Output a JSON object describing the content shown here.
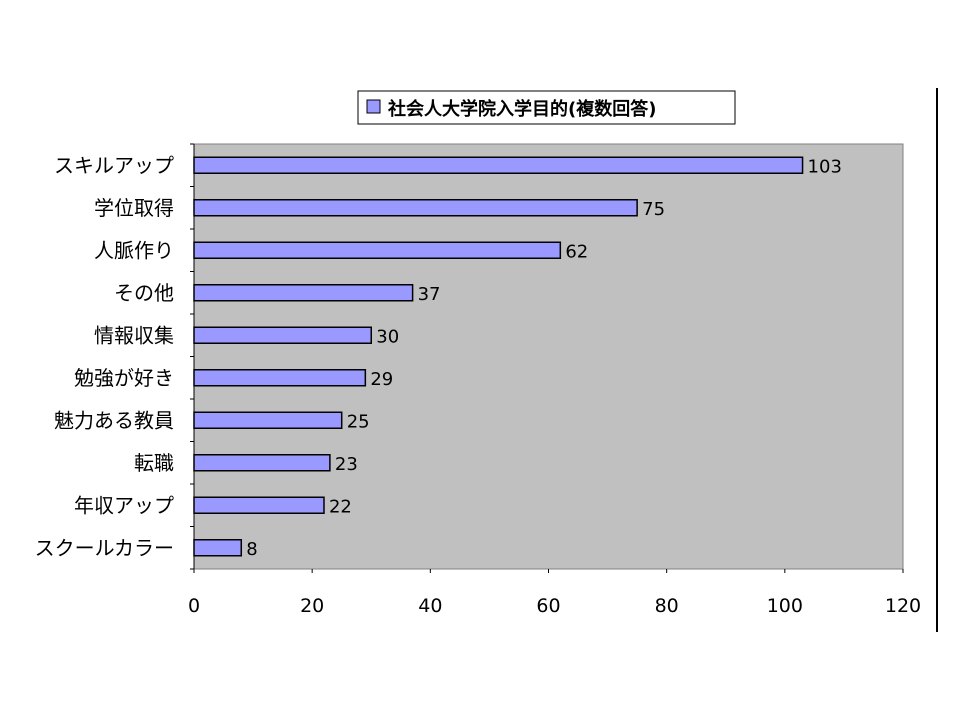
{
  "chart_data": {
    "type": "bar",
    "orientation": "horizontal",
    "categories": [
      "スキルアップ",
      "学位取得",
      "人脈作り",
      "その他",
      "情報収集",
      "勉強が好き",
      "魅力ある教員",
      "転職",
      "年収アップ",
      "スクールカラー"
    ],
    "series": [
      {
        "name": "社会人大学院入学目的(複数回答)",
        "values": [
          103,
          75,
          62,
          37,
          30,
          29,
          25,
          23,
          22,
          8
        ]
      }
    ],
    "xlim": [
      0,
      120
    ],
    "x_ticks": [
      0,
      20,
      40,
      60,
      80,
      100,
      120
    ],
    "title": "",
    "xlabel": "",
    "ylabel": "",
    "grid": false,
    "legend_position": "top",
    "colors": {
      "bar_fill": "#9999ff",
      "bar_stroke": "#000000",
      "plot_background": "#c0c0c0"
    }
  }
}
